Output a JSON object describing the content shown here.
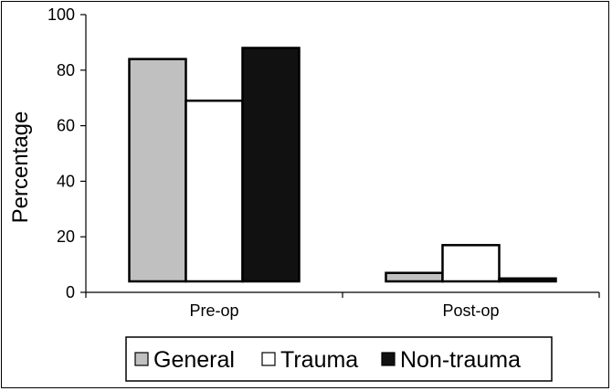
{
  "chart_data": {
    "type": "bar",
    "title": "",
    "xlabel": "",
    "ylabel": "Percentage",
    "ylim": [
      0,
      100
    ],
    "yticks": [
      0,
      20,
      40,
      60,
      80,
      100
    ],
    "categories": [
      "Pre-op",
      "Post-op"
    ],
    "series": [
      {
        "name": "General",
        "values": [
          84,
          7
        ],
        "color": "#c0c0c0"
      },
      {
        "name": "Trauma",
        "values": [
          69,
          17
        ],
        "color": "#ffffff"
      },
      {
        "name": "Non-trauma",
        "values": [
          88,
          5
        ],
        "color": "#111111"
      }
    ],
    "grid": false,
    "legend": "bottom"
  }
}
